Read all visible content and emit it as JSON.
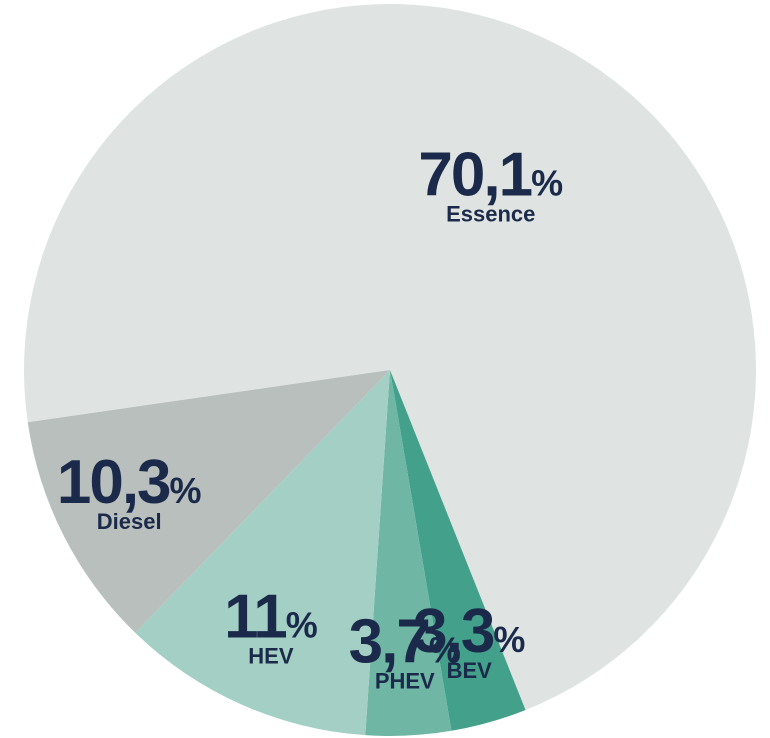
{
  "chart_data": {
    "type": "pie",
    "unit": "%",
    "categories": [
      "Essence",
      "BEV",
      "PHEV",
      "HEV",
      "Diesel"
    ],
    "values": [
      70.1,
      3.3,
      3.7,
      11,
      10.3
    ],
    "value_labels": [
      "70,1",
      "3,3",
      "3,7",
      "11",
      "10,3"
    ],
    "colors": [
      "#dfe4e2",
      "#43a08a",
      "#6fb6a4",
      "#a3cfc4",
      "#b9bfbc"
    ]
  }
}
